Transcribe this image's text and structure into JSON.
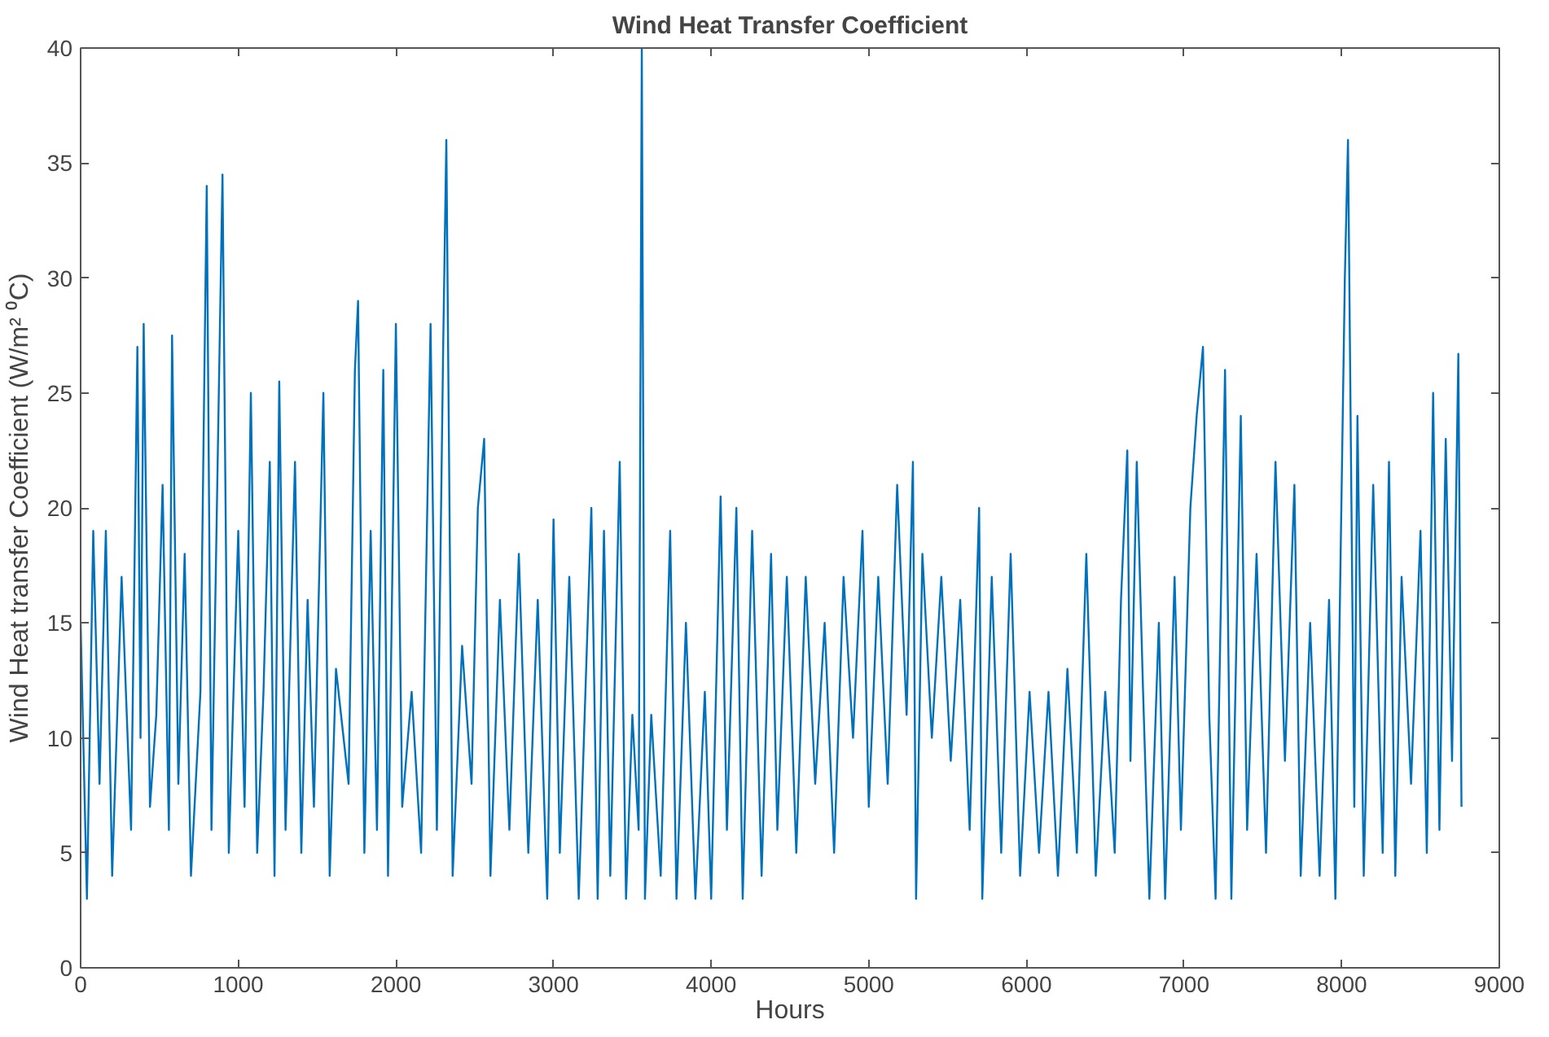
{
  "chart_data": {
    "type": "line",
    "title": "Wind Heat Transfer Coefficient",
    "xlabel": "Hours",
    "ylabel": "Wind Heat transfer Coefficient (W/m² ⁰C)",
    "xlim": [
      0,
      9000
    ],
    "xticks": [
      0,
      1000,
      2000,
      3000,
      4000,
      5000,
      6000,
      7000,
      8000,
      9000
    ],
    "ylim": [
      0,
      40
    ],
    "yticks": [
      0,
      5,
      10,
      15,
      20,
      25,
      30,
      35,
      40
    ],
    "grid": false,
    "line_style": "solid",
    "series": [
      {
        "color": "#0072bd",
        "x": [
          0,
          40,
          80,
          120,
          160,
          200,
          260,
          320,
          360,
          380,
          400,
          440,
          480,
          520,
          560,
          580,
          620,
          660,
          700,
          760,
          800,
          830,
          900,
          940,
          1000,
          1040,
          1080,
          1120,
          1160,
          1200,
          1230,
          1260,
          1300,
          1360,
          1400,
          1440,
          1480,
          1540,
          1580,
          1620,
          1700,
          1740,
          1760,
          1800,
          1840,
          1880,
          1920,
          1950,
          2000,
          2040,
          2100,
          2160,
          2220,
          2260,
          2300,
          2320,
          2360,
          2420,
          2480,
          2520,
          2560,
          2600,
          2660,
          2720,
          2780,
          2840,
          2900,
          2960,
          3000,
          3040,
          3100,
          3160,
          3240,
          3280,
          3320,
          3360,
          3420,
          3460,
          3500,
          3540,
          3560,
          3580,
          3620,
          3680,
          3740,
          3780,
          3840,
          3900,
          3960,
          4000,
          4060,
          4100,
          4160,
          4200,
          4260,
          4320,
          4380,
          4420,
          4480,
          4540,
          4600,
          4660,
          4720,
          4780,
          4840,
          4900,
          4960,
          5000,
          5060,
          5120,
          5180,
          5240,
          5280,
          5300,
          5340,
          5400,
          5460,
          5520,
          5580,
          5640,
          5700,
          5720,
          5780,
          5840,
          5900,
          5960,
          6020,
          6080,
          6140,
          6200,
          6260,
          6320,
          6380,
          6440,
          6500,
          6560,
          6600,
          6640,
          6660,
          6700,
          6740,
          6780,
          6840,
          6880,
          6940,
          6980,
          7040,
          7080,
          7120,
          7160,
          7200,
          7260,
          7300,
          7360,
          7400,
          7460,
          7520,
          7580,
          7640,
          7700,
          7740,
          7800,
          7860,
          7920,
          7960,
          8020,
          8040,
          8080,
          8100,
          8140,
          8200,
          8260,
          8300,
          8340,
          8380,
          8440,
          8500,
          8540,
          8580,
          8620,
          8660,
          8700,
          8740,
          8760
        ],
        "values": [
          15,
          3,
          19,
          8,
          19,
          4,
          17,
          6,
          27,
          10,
          28,
          7,
          11,
          21,
          6,
          27.5,
          8,
          18,
          4,
          12,
          34,
          6,
          34.5,
          5,
          19,
          7,
          25,
          5,
          12,
          22,
          4,
          25.5,
          6,
          22,
          5,
          16,
          7,
          25,
          4,
          13,
          8,
          26,
          29,
          5,
          19,
          6,
          26,
          4,
          28,
          7,
          12,
          5,
          28,
          6,
          27,
          36,
          4,
          14,
          8,
          20,
          23,
          4,
          16,
          6,
          18,
          5,
          16,
          3,
          19.5,
          5,
          17,
          3,
          20,
          3,
          19,
          4,
          22,
          3,
          11,
          6,
          40,
          3,
          11,
          4,
          19,
          3,
          15,
          3,
          12,
          3,
          20.5,
          6,
          20,
          3,
          19,
          4,
          18,
          6,
          17,
          5,
          17,
          8,
          15,
          5,
          17,
          10,
          19,
          7,
          17,
          8,
          21,
          11,
          22,
          3,
          18,
          10,
          17,
          9,
          16,
          6,
          20,
          3,
          17,
          5,
          18,
          4,
          12,
          5,
          12,
          4,
          13,
          5,
          18,
          4,
          12,
          5,
          16,
          22.5,
          9,
          22,
          12,
          3,
          15,
          3,
          17,
          6,
          20,
          24,
          27,
          11,
          3,
          26,
          3,
          24,
          6,
          18,
          5,
          22,
          9,
          21,
          4,
          15,
          4,
          16,
          3,
          30,
          36,
          7,
          24,
          4,
          21,
          5,
          22,
          4,
          17,
          8,
          19,
          5,
          25,
          6,
          23,
          9,
          26.7,
          7
        ]
      }
    ]
  }
}
